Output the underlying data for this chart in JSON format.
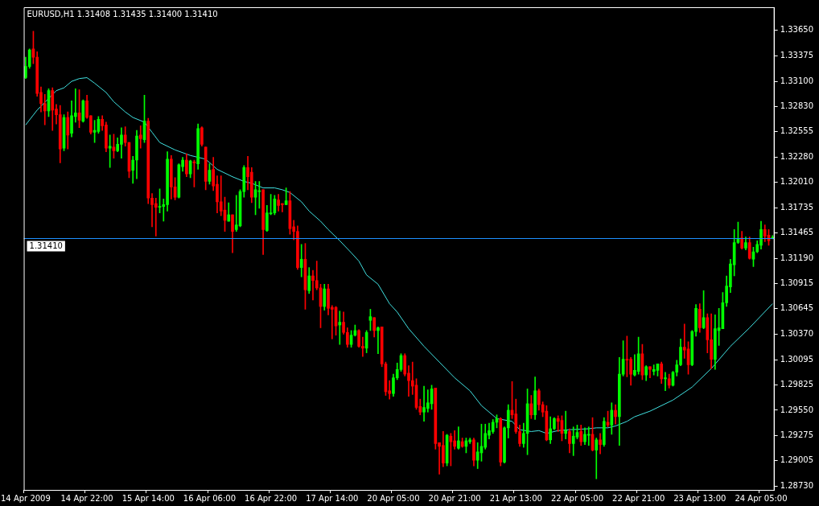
{
  "chart_data": {
    "type": "candlestick",
    "title": "EURUSD,H1 1.31408 1.31435 1.31400 1.31410",
    "categories": [
      "14 Apr 2009",
      null,
      null,
      null,
      null,
      null,
      null,
      null,
      null,
      null,
      null,
      null,
      null,
      null,
      null,
      null,
      "14 Apr 22:00",
      null,
      null,
      null,
      null,
      null,
      null,
      null,
      null,
      null,
      null,
      null,
      null,
      null,
      null,
      null,
      "15 Apr 14:00",
      null,
      null,
      null,
      null,
      null,
      null,
      null,
      null,
      null,
      null,
      null,
      null,
      null,
      null,
      null,
      "16 Apr 06:00",
      null,
      null,
      null,
      null,
      null,
      null,
      null,
      null,
      null,
      null,
      null,
      null,
      null,
      null,
      null,
      "16 Apr 22:00",
      null,
      null,
      null,
      null,
      null,
      null,
      null,
      null,
      null,
      null,
      null,
      null,
      null,
      null,
      null,
      "17 Apr 14:00",
      null,
      null,
      null,
      null,
      null,
      null,
      null,
      null,
      null,
      null,
      null,
      null,
      null,
      null,
      null,
      "20 Apr 05:00",
      null,
      null,
      null,
      null,
      null,
      null,
      null,
      null,
      null,
      null,
      null,
      null,
      null,
      null,
      null,
      "20 Apr 21:00",
      null,
      null,
      null,
      null,
      null,
      null,
      null,
      null,
      null,
      null,
      null,
      null,
      null,
      null,
      null,
      "21 Apr 13:00",
      null,
      null,
      null,
      null,
      null,
      null,
      null,
      null,
      null,
      null,
      null,
      null,
      null,
      null,
      null,
      "22 Apr 05:00",
      null,
      null,
      null,
      null,
      null,
      null,
      null,
      null,
      null,
      null,
      null,
      null,
      null,
      null,
      null,
      "22 Apr 21:00",
      null,
      null,
      null,
      null,
      null,
      null,
      null,
      null,
      null,
      null,
      null,
      null,
      null,
      null,
      null,
      "23 Apr 13:00",
      null,
      null,
      null,
      null,
      null,
      null,
      null,
      null,
      null,
      null,
      null,
      null,
      null,
      null,
      null,
      "24 Apr 05:00",
      null,
      null,
      null
    ],
    "ohlc": [
      [
        1.3314,
        1.3336,
        1.3313,
        1.3326
      ],
      [
        1.3326,
        1.3345,
        1.3324,
        1.3344
      ],
      [
        1.3345,
        1.3364,
        1.3329,
        1.3336
      ],
      [
        1.3336,
        1.3342,
        1.3294,
        1.3297
      ],
      [
        1.3298,
        1.3304,
        1.3277,
        1.3286
      ],
      [
        1.3286,
        1.3296,
        1.3263,
        1.3278
      ],
      [
        1.3278,
        1.3302,
        1.3272,
        1.33
      ],
      [
        1.33,
        1.3303,
        1.3257,
        1.3279
      ],
      [
        1.328,
        1.3285,
        1.3264,
        1.3274
      ],
      [
        1.3274,
        1.3284,
        1.3222,
        1.3237
      ],
      [
        1.3238,
        1.3274,
        1.3235,
        1.3271
      ],
      [
        1.3271,
        1.3277,
        1.3237,
        1.3252
      ],
      [
        1.3254,
        1.3289,
        1.325,
        1.3273
      ],
      [
        1.3272,
        1.3302,
        1.3266,
        1.3276
      ],
      [
        1.3276,
        1.3301,
        1.326,
        1.3268
      ],
      [
        1.3267,
        1.329,
        1.3266,
        1.3289
      ],
      [
        1.3289,
        1.3295,
        1.327,
        1.3271
      ],
      [
        1.3273,
        1.3273,
        1.3253,
        1.3255
      ],
      [
        1.3255,
        1.3268,
        1.3244,
        1.3257
      ],
      [
        1.3256,
        1.3272,
        1.3254,
        1.3269
      ],
      [
        1.3269,
        1.3273,
        1.3257,
        1.3262
      ],
      [
        1.3263,
        1.3266,
        1.3234,
        1.3238
      ],
      [
        1.3238,
        1.3252,
        1.3217,
        1.324
      ],
      [
        1.3239,
        1.3253,
        1.3227,
        1.3235
      ],
      [
        1.3235,
        1.3249,
        1.3234,
        1.3242
      ],
      [
        1.3242,
        1.326,
        1.3227,
        1.3252
      ],
      [
        1.3252,
        1.3261,
        1.324,
        1.3244
      ],
      [
        1.3244,
        1.3244,
        1.3206,
        1.3213
      ],
      [
        1.3214,
        1.3229,
        1.32,
        1.3225
      ],
      [
        1.3225,
        1.3257,
        1.3205,
        1.3251
      ],
      [
        1.3252,
        1.3262,
        1.3238,
        1.3248
      ],
      [
        1.3247,
        1.3295,
        1.3244,
        1.3267
      ],
      [
        1.3267,
        1.327,
        1.3178,
        1.3184
      ],
      [
        1.3184,
        1.3189,
        1.3153,
        1.3177
      ],
      [
        1.3178,
        1.3184,
        1.3143,
        1.3174
      ],
      [
        1.3174,
        1.3194,
        1.3168,
        1.3175
      ],
      [
        1.3175,
        1.3183,
        1.3159,
        1.3177
      ],
      [
        1.3177,
        1.3234,
        1.317,
        1.3226
      ],
      [
        1.3226,
        1.323,
        1.3183,
        1.3196
      ],
      [
        1.3196,
        1.3206,
        1.3182,
        1.3185
      ],
      [
        1.3185,
        1.3221,
        1.3184,
        1.322
      ],
      [
        1.3218,
        1.3228,
        1.3213,
        1.3225
      ],
      [
        1.3225,
        1.3232,
        1.3207,
        1.321
      ],
      [
        1.321,
        1.3225,
        1.3206,
        1.3224
      ],
      [
        1.3223,
        1.3225,
        1.3196,
        1.3222
      ],
      [
        1.3221,
        1.3264,
        1.3215,
        1.3259
      ],
      [
        1.326,
        1.3261,
        1.324,
        1.3242
      ],
      [
        1.3239,
        1.3239,
        1.3193,
        1.3202
      ],
      [
        1.3202,
        1.3221,
        1.3199,
        1.3214
      ],
      [
        1.3215,
        1.3228,
        1.3192,
        1.3197
      ],
      [
        1.3199,
        1.3208,
        1.3168,
        1.318
      ],
      [
        1.318,
        1.3208,
        1.3165,
        1.317
      ],
      [
        1.3171,
        1.3185,
        1.3148,
        1.316
      ],
      [
        1.3159,
        1.3179,
        1.3159,
        1.3166
      ],
      [
        1.3166,
        1.3166,
        1.3125,
        1.3148
      ],
      [
        1.315,
        1.3187,
        1.3148,
        1.3155
      ],
      [
        1.3154,
        1.3193,
        1.3153,
        1.3191
      ],
      [
        1.3191,
        1.3219,
        1.3185,
        1.3217
      ],
      [
        1.3217,
        1.3229,
        1.3193,
        1.3207
      ],
      [
        1.3212,
        1.3217,
        1.3179,
        1.3185
      ],
      [
        1.3185,
        1.3202,
        1.3166,
        1.3193
      ],
      [
        1.3191,
        1.3202,
        1.3173,
        1.3192
      ],
      [
        1.3193,
        1.3193,
        1.3123,
        1.315
      ],
      [
        1.3149,
        1.3176,
        1.3148,
        1.3168
      ],
      [
        1.3167,
        1.3188,
        1.3166,
        1.3168
      ],
      [
        1.3168,
        1.3187,
        1.3166,
        1.3183
      ],
      [
        1.3182,
        1.3188,
        1.317,
        1.3176
      ],
      [
        1.3178,
        1.3178,
        1.3169,
        1.3177
      ],
      [
        1.3177,
        1.3195,
        1.3177,
        1.3181
      ],
      [
        1.3181,
        1.3191,
        1.3145,
        1.3151
      ],
      [
        1.3153,
        1.316,
        1.3139,
        1.3148
      ],
      [
        1.3148,
        1.3154,
        1.3107,
        1.3109
      ],
      [
        1.3109,
        1.3134,
        1.3099,
        1.3118
      ],
      [
        1.3118,
        1.3135,
        1.3064,
        1.3085
      ],
      [
        1.3084,
        1.3109,
        1.3081,
        1.31
      ],
      [
        1.31,
        1.3106,
        1.3074,
        1.3095
      ],
      [
        1.3095,
        1.3116,
        1.3085,
        1.3087
      ],
      [
        1.3087,
        1.3091,
        1.3044,
        1.3067
      ],
      [
        1.3067,
        1.3091,
        1.3063,
        1.3086
      ],
      [
        1.3086,
        1.3091,
        1.3058,
        1.3065
      ],
      [
        1.3066,
        1.3068,
        1.3032,
        1.3064
      ],
      [
        1.3066,
        1.3067,
        1.3036,
        1.3046
      ],
      [
        1.3047,
        1.3062,
        1.3026,
        1.305
      ],
      [
        1.305,
        1.3061,
        1.3037,
        1.3039
      ],
      [
        1.3039,
        1.3044,
        1.3023,
        1.3026
      ],
      [
        1.3026,
        1.3041,
        1.3023,
        1.3036
      ],
      [
        1.3036,
        1.3047,
        1.3035,
        1.3041
      ],
      [
        1.3041,
        1.3042,
        1.3023,
        1.3024
      ],
      [
        1.3024,
        1.3034,
        1.3013,
        1.3022
      ],
      [
        1.3022,
        1.3041,
        1.3017,
        1.3039
      ],
      [
        1.3052,
        1.3064,
        1.3041,
        1.3056
      ],
      [
        1.3055,
        1.3055,
        1.3034,
        1.3041
      ],
      [
        1.3041,
        1.3045,
        1.3016,
        1.3044
      ],
      [
        1.3045,
        1.3045,
        1.3002,
        1.3005
      ],
      [
        1.3005,
        1.3007,
        1.2971,
        1.2975
      ],
      [
        1.2976,
        1.2987,
        1.2967,
        1.2973
      ],
      [
        1.2973,
        1.2994,
        1.297,
        1.299
      ],
      [
        1.299,
        1.3006,
        1.2988,
        1.2999
      ],
      [
        1.2999,
        1.3016,
        1.2997,
        1.3014
      ],
      [
        1.3014,
        1.3016,
        1.2992,
        1.2994
      ],
      [
        1.2995,
        1.3003,
        1.297,
        1.2987
      ],
      [
        1.2987,
        1.3007,
        1.2972,
        1.2981
      ],
      [
        1.2982,
        1.2989,
        1.2956,
        1.2958
      ],
      [
        1.2959,
        1.2967,
        1.295,
        1.2953
      ],
      [
        1.2953,
        1.2981,
        1.2943,
        1.2958
      ],
      [
        1.2957,
        1.2977,
        1.2953,
        1.2963
      ],
      [
        1.2962,
        1.2982,
        1.2956,
        1.2978
      ],
      [
        1.2979,
        1.2979,
        1.2913,
        1.2919
      ],
      [
        1.292,
        1.292,
        1.2886,
        1.2916
      ],
      [
        1.2917,
        1.2932,
        1.2894,
        1.2898
      ],
      [
        1.2898,
        1.2929,
        1.2895,
        1.2928
      ],
      [
        1.2927,
        1.293,
        1.2895,
        1.2921
      ],
      [
        1.2922,
        1.2933,
        1.2913,
        1.2916
      ],
      [
        1.2914,
        1.2937,
        1.2913,
        1.2922
      ],
      [
        1.2921,
        1.2925,
        1.2915,
        1.2916
      ],
      [
        1.2916,
        1.2925,
        1.2909,
        1.2922
      ],
      [
        1.2921,
        1.2925,
        1.2919,
        1.2923
      ],
      [
        1.2923,
        1.2925,
        1.2895,
        1.2901
      ],
      [
        1.2901,
        1.292,
        1.2892,
        1.291
      ],
      [
        1.2909,
        1.294,
        1.29,
        1.2916
      ],
      [
        1.2915,
        1.294,
        1.2913,
        1.293
      ],
      [
        1.2928,
        1.2941,
        1.2924,
        1.2933
      ],
      [
        1.2932,
        1.2945,
        1.293,
        1.2942
      ],
      [
        1.2942,
        1.295,
        1.2936,
        1.2946
      ],
      [
        1.2946,
        1.2947,
        1.2895,
        1.2899
      ],
      [
        1.2899,
        1.2937,
        1.2898,
        1.2936
      ],
      [
        1.2936,
        1.2961,
        1.2925,
        1.2955
      ],
      [
        1.2955,
        1.2986,
        1.2946,
        1.295
      ],
      [
        1.2951,
        1.2967,
        1.293,
        1.2932
      ],
      [
        1.2932,
        1.2939,
        1.2916,
        1.2919
      ],
      [
        1.2919,
        1.2941,
        1.2915,
        1.293
      ],
      [
        1.293,
        1.2978,
        1.2907,
        1.2962
      ],
      [
        1.2962,
        1.2971,
        1.2946,
        1.295
      ],
      [
        1.295,
        1.2991,
        1.2945,
        1.2976
      ],
      [
        1.2976,
        1.2978,
        1.2955,
        1.2961
      ],
      [
        1.2961,
        1.2964,
        1.2948,
        1.2953
      ],
      [
        1.2954,
        1.296,
        1.2922,
        1.2923
      ],
      [
        1.2923,
        1.2948,
        1.2919,
        1.2935
      ],
      [
        1.2935,
        1.2947,
        1.2934,
        1.2946
      ],
      [
        1.2946,
        1.2949,
        1.2932,
        1.2943
      ],
      [
        1.2944,
        1.2949,
        1.2922,
        1.293
      ],
      [
        1.293,
        1.2954,
        1.2924,
        1.2933
      ],
      [
        1.2932,
        1.2935,
        1.2909,
        1.2919
      ],
      [
        1.2919,
        1.2937,
        1.2906,
        1.2927
      ],
      [
        1.2926,
        1.2939,
        1.2924,
        1.2931
      ],
      [
        1.2932,
        1.2939,
        1.2917,
        1.2921
      ],
      [
        1.2921,
        1.2936,
        1.2918,
        1.2929
      ],
      [
        1.2928,
        1.2937,
        1.2917,
        1.2929
      ],
      [
        1.2929,
        1.2947,
        1.2911,
        1.2912
      ],
      [
        1.2912,
        1.2925,
        1.2881,
        1.2923
      ],
      [
        1.2923,
        1.293,
        1.2908,
        1.2918
      ],
      [
        1.2918,
        1.2947,
        1.2916,
        1.2943
      ],
      [
        1.2942,
        1.2954,
        1.2937,
        1.2939
      ],
      [
        1.2939,
        1.2963,
        1.2929,
        1.2955
      ],
      [
        1.2955,
        1.2961,
        1.294,
        1.2948
      ],
      [
        1.2948,
        1.3012,
        1.2917,
        1.2994
      ],
      [
        1.2994,
        1.303,
        1.2992,
        1.301
      ],
      [
        1.301,
        1.3035,
        1.2991,
        1.3009
      ],
      [
        1.301,
        1.3012,
        1.2982,
        1.2994
      ],
      [
        1.2993,
        1.3015,
        1.2992,
        1.2998
      ],
      [
        1.2997,
        1.3034,
        1.2994,
        1.3016
      ],
      [
        1.3016,
        1.3026,
        1.2988,
        1.2993
      ],
      [
        1.2993,
        1.3003,
        1.2987,
        1.3002
      ],
      [
        1.3002,
        1.3002,
        1.299,
        1.2999
      ],
      [
        1.2997,
        1.3004,
        1.2993,
        1.2999
      ],
      [
        1.2998,
        1.3005,
        1.2992,
        1.3005
      ],
      [
        1.3005,
        1.3007,
        1.2984,
        1.2989
      ],
      [
        1.2989,
        1.2996,
        1.2976,
        1.299
      ],
      [
        1.2989,
        1.2994,
        1.2979,
        1.2982
      ],
      [
        1.2982,
        1.2997,
        1.2981,
        1.2996
      ],
      [
        1.2996,
        1.3009,
        1.2992,
        1.3004
      ],
      [
        1.3004,
        1.3032,
        1.3003,
        1.3023
      ],
      [
        1.3023,
        1.3048,
        1.3011,
        1.302
      ],
      [
        1.3021,
        1.3029,
        1.2994,
        1.3004
      ],
      [
        1.3004,
        1.3041,
        1.3003,
        1.304
      ],
      [
        1.304,
        1.3069,
        1.3035,
        1.3065
      ],
      [
        1.3064,
        1.307,
        1.3039,
        1.3044
      ],
      [
        1.3044,
        1.3084,
        1.3043,
        1.3055
      ],
      [
        1.3055,
        1.3059,
        1.3017,
        1.3031
      ],
      [
        1.3031,
        1.3059,
        1.3,
        1.301
      ],
      [
        1.301,
        1.3058,
        1.2999,
        1.3043
      ],
      [
        1.3041,
        1.3065,
        1.3025,
        1.3044
      ],
      [
        1.3043,
        1.3082,
        1.3043,
        1.3071
      ],
      [
        1.3071,
        1.31,
        1.3067,
        1.3089
      ],
      [
        1.3088,
        1.3118,
        1.3082,
        1.3113
      ],
      [
        1.3112,
        1.315,
        1.31,
        1.3136
      ],
      [
        1.3136,
        1.3158,
        1.3135,
        1.314
      ],
      [
        1.3141,
        1.3148,
        1.3129,
        1.313
      ],
      [
        1.313,
        1.3142,
        1.3128,
        1.3136
      ],
      [
        1.3136,
        1.3142,
        1.3118,
        1.3119
      ],
      [
        1.3118,
        1.3131,
        1.311,
        1.3126
      ],
      [
        1.3126,
        1.3138,
        1.3125,
        1.3134
      ],
      [
        1.3133,
        1.3159,
        1.3129,
        1.315
      ],
      [
        1.315,
        1.3155,
        1.3137,
        1.3143
      ],
      [
        1.3144,
        1.315,
        1.3133,
        1.3138
      ],
      [
        1.31408,
        1.31435,
        1.314,
        1.3141
      ]
    ],
    "colors": [
      "#00ff00",
      "#00ff00",
      "#ff0000",
      "#ff0000",
      "#ff0000",
      "#ff0000",
      "#00ff00",
      "#ff0000",
      "#ff0000",
      "#ff0000",
      "#00ff00",
      "#ff0000",
      "#00ff00",
      "#00ff00",
      "#ff0000",
      "#00ff00",
      "#ff0000",
      "#ff0000",
      "#00ff00",
      "#00ff00",
      "#ff0000",
      "#ff0000",
      "#00ff00",
      "#ff0000",
      "#00ff00",
      "#00ff00",
      "#ff0000",
      "#ff0000",
      "#00ff00",
      "#00ff00",
      "#ff0000",
      "#00ff00",
      "#ff0000",
      "#ff0000",
      "#ff0000",
      "#00ff00",
      "#00ff00",
      "#00ff00",
      "#ff0000",
      "#ff0000",
      "#00ff00",
      "#00ff00",
      "#ff0000",
      "#00ff00",
      "#ff0000",
      "#00ff00",
      "#ff0000",
      "#ff0000",
      "#00ff00",
      "#ff0000",
      "#ff0000",
      "#ff0000",
      "#ff0000",
      "#00ff00",
      "#ff0000",
      "#00ff00",
      "#00ff00",
      "#00ff00",
      "#ff0000",
      "#ff0000",
      "#00ff00",
      "#00ff00",
      "#ff0000",
      "#00ff00",
      "#00ff00",
      "#00ff00",
      "#ff0000",
      "#ff0000",
      "#00ff00",
      "#ff0000",
      "#ff0000",
      "#ff0000",
      "#00ff00",
      "#ff0000",
      "#00ff00",
      "#ff0000",
      "#ff0000",
      "#ff0000",
      "#00ff00",
      "#ff0000",
      "#ff0000",
      "#ff0000",
      "#00ff00",
      "#ff0000",
      "#ff0000",
      "#00ff00",
      "#00ff00",
      "#ff0000",
      "#ff0000",
      "#00ff00",
      "#00ff00",
      "#ff0000",
      "#00ff00",
      "#ff0000",
      "#ff0000",
      "#ff0000",
      "#00ff00",
      "#00ff00",
      "#00ff00",
      "#ff0000",
      "#ff0000",
      "#ff0000",
      "#ff0000",
      "#ff0000",
      "#00ff00",
      "#00ff00",
      "#00ff00",
      "#ff0000",
      "#ff0000",
      "#ff0000",
      "#00ff00",
      "#ff0000",
      "#ff0000",
      "#00ff00",
      "#ff0000",
      "#00ff00",
      "#00ff00",
      "#ff0000",
      "#00ff00",
      "#00ff00",
      "#00ff00",
      "#00ff00",
      "#00ff00",
      "#00ff00",
      "#ff0000",
      "#00ff00",
      "#00ff00",
      "#ff0000",
      "#ff0000",
      "#ff0000",
      "#00ff00",
      "#00ff00",
      "#ff0000",
      "#00ff00",
      "#ff0000",
      "#ff0000",
      "#ff0000",
      "#00ff00",
      "#00ff00",
      "#ff0000",
      "#ff0000",
      "#00ff00",
      "#ff0000",
      "#00ff00",
      "#00ff00",
      "#ff0000",
      "#00ff00",
      "#00ff00",
      "#ff0000",
      "#00ff00",
      "#ff0000",
      "#00ff00",
      "#ff0000",
      "#00ff00",
      "#ff0000",
      "#00ff00",
      "#00ff00",
      "#ff0000",
      "#ff0000",
      "#00ff00",
      "#00ff00",
      "#ff0000",
      "#00ff00",
      "#ff0000",
      "#00ff00",
      "#00ff00",
      "#ff0000",
      "#00ff00",
      "#ff0000",
      "#00ff00",
      "#00ff00",
      "#00ff00",
      "#ff0000",
      "#ff0000",
      "#00ff00",
      "#00ff00",
      "#ff0000",
      "#00ff00",
      "#ff0000",
      "#ff0000",
      "#00ff00",
      "#00ff00",
      "#00ff00",
      "#00ff00",
      "#00ff00",
      "#00ff00",
      "#00ff00",
      "#ff0000",
      "#00ff00",
      "#ff0000",
      "#00ff00",
      "#00ff00",
      "#00ff00",
      "#ff0000",
      "#ff0000",
      "#00ff00"
    ],
    "series": [
      {
        "type": "line",
        "color": "#40e0e0",
        "values": [
          1.3263,
          null,
          null,
          1.3279,
          null,
          null,
          null,
          null,
          1.33,
          null,
          1.3303,
          null,
          1.331,
          null,
          1.3313,
          null,
          1.3314,
          null,
          1.3308,
          null,
          null,
          1.3298,
          null,
          1.3288,
          null,
          null,
          1.3277,
          null,
          1.3271,
          null,
          null,
          1.3266,
          null,
          1.3255,
          null,
          1.3244,
          null,
          null,
          null,
          1.3236,
          null,
          null,
          null,
          1.323,
          null,
          null,
          null,
          1.3226,
          null,
          null,
          1.3215,
          null,
          null,
          null,
          1.3207,
          null,
          null,
          1.3202,
          null,
          1.32,
          null,
          null,
          1.3195,
          null,
          null,
          1.3195,
          null,
          1.3193,
          null,
          1.319,
          null,
          null,
          1.318,
          null,
          1.317,
          null,
          null,
          1.3159,
          null,
          1.315,
          null,
          null,
          1.3138,
          null,
          null,
          1.3125,
          null,
          1.3116,
          null,
          1.3101,
          null,
          null,
          1.3091,
          null,
          null,
          1.307,
          null,
          1.3061,
          null,
          null,
          1.3043,
          null,
          null,
          null,
          1.3024,
          null,
          null,
          null,
          1.3007,
          null,
          null,
          null,
          1.299,
          null,
          null,
          null,
          1.2976,
          null,
          null,
          1.296,
          null,
          null,
          null,
          1.2946,
          null,
          null,
          null,
          1.2943,
          null,
          1.2934,
          null,
          null,
          1.2932,
          null,
          1.2933,
          null,
          1.293,
          null,
          null,
          1.2933,
          null,
          null,
          1.2934,
          null,
          null,
          null,
          null,
          1.2935,
          null,
          1.2936,
          null,
          null,
          1.2936,
          null,
          1.2938,
          null,
          null,
          1.2943,
          null,
          1.2948,
          null,
          null,
          null,
          1.2954,
          null,
          null,
          null,
          null,
          null,
          1.2966,
          null,
          null,
          null,
          null,
          1.298,
          null,
          null,
          null,
          null,
          1.3,
          null,
          null,
          null,
          null,
          1.3024,
          null,
          null,
          null,
          null,
          1.3044,
          null,
          null,
          null,
          null,
          null,
          1.307
        ]
      }
    ],
    "ylim": [
      1.2869,
      1.339
    ],
    "yticks": [
      {
        "value": 1.3365,
        "label": "1.33650"
      },
      {
        "value": 1.33375,
        "label": "1.33375"
      },
      {
        "value": 1.331,
        "label": "1.33100"
      },
      {
        "value": 1.3283,
        "label": "1.32830"
      },
      {
        "value": 1.32555,
        "label": "1.32555"
      },
      {
        "value": 1.3228,
        "label": "1.32280"
      },
      {
        "value": 1.3201,
        "label": "1.32010"
      },
      {
        "value": 1.31735,
        "label": "1.31735"
      },
      {
        "value": 1.31465,
        "label": "1.31465"
      },
      {
        "value": 1.3119,
        "label": "1.31190"
      },
      {
        "value": 1.30915,
        "label": "1.30915"
      },
      {
        "value": 1.30645,
        "label": "1.30645"
      },
      {
        "value": 1.3037,
        "label": "1.30370"
      },
      {
        "value": 1.30095,
        "label": "1.30095"
      },
      {
        "value": 1.29825,
        "label": "1.29825"
      },
      {
        "value": 1.2955,
        "label": "1.29550"
      },
      {
        "value": 1.29275,
        "label": "1.29275"
      },
      {
        "value": 1.29005,
        "label": "1.29005"
      },
      {
        "value": 1.2873,
        "label": "1.28730"
      }
    ],
    "ref_lines": [
      {
        "axis": "y",
        "value": 1.3141,
        "label": "1.31410",
        "color": "#1e90ff"
      }
    ],
    "marker": "none",
    "legend": false,
    "grid": false
  }
}
